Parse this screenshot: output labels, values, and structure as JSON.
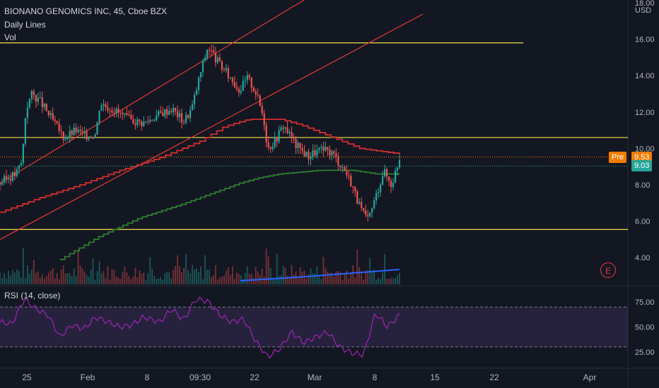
{
  "header": {
    "symbol_line": "BIONANO GENOMICS INC, 45, Cboe BZX",
    "indicator_1": "Daily Lines",
    "indicator_2": "Vol",
    "rsi_label": "RSI (14, close)",
    "currency": "USD"
  },
  "badges": {
    "pre_label": "Pre",
    "pre_value": "9.53",
    "last_value": "9.03",
    "earnings_letter": "E"
  },
  "colors": {
    "background": "#131722",
    "up": "#26a69a",
    "down": "#ef5350",
    "channel": "#e53935",
    "horizontal": "#f5e04d",
    "ma_red": "#d32f2f",
    "ma_green": "#2e7d32",
    "rsi": "#9c27b0",
    "volume_ma": "#2962ff",
    "pre_badge": "#f57c00",
    "last_badge": "#26a69a"
  },
  "chart_data": {
    "type": "candlestick",
    "price_axis_ticks": [
      "18.00",
      "16.00",
      "14.00",
      "12.00",
      "10.00",
      "8.00",
      "6.00",
      "4.00"
    ],
    "rsi_axis_ticks": [
      "75.00",
      "50.00",
      "25.00"
    ],
    "x_tick_labels": [
      "25",
      "Feb",
      "8",
      "09:30",
      "22",
      "Mar",
      "8",
      "15",
      "22",
      "Apr"
    ],
    "price_range": [
      3.0,
      18.0
    ],
    "rsi_range": [
      10,
      90
    ],
    "horizontal_levels": [
      15.8,
      10.6,
      5.55
    ],
    "pre_market_price": 9.53,
    "last_price": 9.03,
    "price_path": [
      [
        0.0,
        8.1
      ],
      [
        0.02,
        8.4
      ],
      [
        0.04,
        8.6
      ],
      [
        0.055,
        9.3
      ],
      [
        0.065,
        12.2
      ],
      [
        0.08,
        13.0
      ],
      [
        0.1,
        12.6
      ],
      [
        0.13,
        11.6
      ],
      [
        0.16,
        10.6
      ],
      [
        0.19,
        11.0
      ],
      [
        0.21,
        10.7
      ],
      [
        0.24,
        10.8
      ],
      [
        0.25,
        12.5
      ],
      [
        0.28,
        12.2
      ],
      [
        0.32,
        11.6
      ],
      [
        0.36,
        11.4
      ],
      [
        0.4,
        11.9
      ],
      [
        0.43,
        12.2
      ],
      [
        0.46,
        11.5
      ],
      [
        0.48,
        12.2
      ],
      [
        0.5,
        14.0
      ],
      [
        0.52,
        15.6
      ],
      [
        0.55,
        14.6
      ],
      [
        0.58,
        13.8
      ],
      [
        0.6,
        13.2
      ],
      [
        0.62,
        13.9
      ],
      [
        0.64,
        13.1
      ],
      [
        0.66,
        11.7
      ],
      [
        0.67,
        10.0
      ],
      [
        0.69,
        10.5
      ],
      [
        0.71,
        11.3
      ],
      [
        0.74,
        10.2
      ],
      [
        0.77,
        9.6
      ],
      [
        0.8,
        9.9
      ],
      [
        0.83,
        9.8
      ],
      [
        0.86,
        8.9
      ],
      [
        0.88,
        8.1
      ],
      [
        0.9,
        6.8
      ],
      [
        0.92,
        6.0
      ],
      [
        0.94,
        7.3
      ],
      [
        0.96,
        8.8
      ],
      [
        0.98,
        8.0
      ],
      [
        1.0,
        9.5
      ]
    ],
    "red_ma_path": [
      [
        0.0,
        6.5
      ],
      [
        0.1,
        7.3
      ],
      [
        0.2,
        8.0
      ],
      [
        0.3,
        8.8
      ],
      [
        0.4,
        9.5
      ],
      [
        0.5,
        10.4
      ],
      [
        0.56,
        11.2
      ],
      [
        0.62,
        11.6
      ],
      [
        0.7,
        11.6
      ],
      [
        0.75,
        11.3
      ],
      [
        0.82,
        10.7
      ],
      [
        0.9,
        10.0
      ],
      [
        1.0,
        9.7
      ]
    ],
    "green_ma_path": [
      [
        0.15,
        3.9
      ],
      [
        0.25,
        5.2
      ],
      [
        0.35,
        6.2
      ],
      [
        0.45,
        6.9
      ],
      [
        0.55,
        7.7
      ],
      [
        0.6,
        8.1
      ],
      [
        0.65,
        8.4
      ],
      [
        0.7,
        8.6
      ],
      [
        0.8,
        8.8
      ],
      [
        0.88,
        8.8
      ],
      [
        0.94,
        8.6
      ],
      [
        1.0,
        8.6
      ]
    ],
    "channel_upper": [
      [
        0.0,
        8.1
      ],
      [
        1.0,
        19.5
      ]
    ],
    "channel_lower": [
      [
        0.0,
        5.0
      ],
      [
        1.0,
        18.5
      ]
    ],
    "rsi_path": [
      [
        0.0,
        55
      ],
      [
        0.03,
        53
      ],
      [
        0.06,
        78
      ],
      [
        0.09,
        68
      ],
      [
        0.12,
        62
      ],
      [
        0.15,
        40
      ],
      [
        0.18,
        52
      ],
      [
        0.21,
        48
      ],
      [
        0.24,
        60
      ],
      [
        0.27,
        55
      ],
      [
        0.3,
        50
      ],
      [
        0.33,
        52
      ],
      [
        0.36,
        60
      ],
      [
        0.4,
        55
      ],
      [
        0.43,
        68
      ],
      [
        0.46,
        57
      ],
      [
        0.49,
        78
      ],
      [
        0.52,
        76
      ],
      [
        0.55,
        62
      ],
      [
        0.58,
        55
      ],
      [
        0.61,
        58
      ],
      [
        0.64,
        36
      ],
      [
        0.67,
        20
      ],
      [
        0.7,
        28
      ],
      [
        0.73,
        45
      ],
      [
        0.76,
        34
      ],
      [
        0.79,
        40
      ],
      [
        0.82,
        45
      ],
      [
        0.85,
        30
      ],
      [
        0.88,
        24
      ],
      [
        0.91,
        22
      ],
      [
        0.94,
        64
      ],
      [
        0.97,
        50
      ],
      [
        1.0,
        62
      ]
    ]
  }
}
